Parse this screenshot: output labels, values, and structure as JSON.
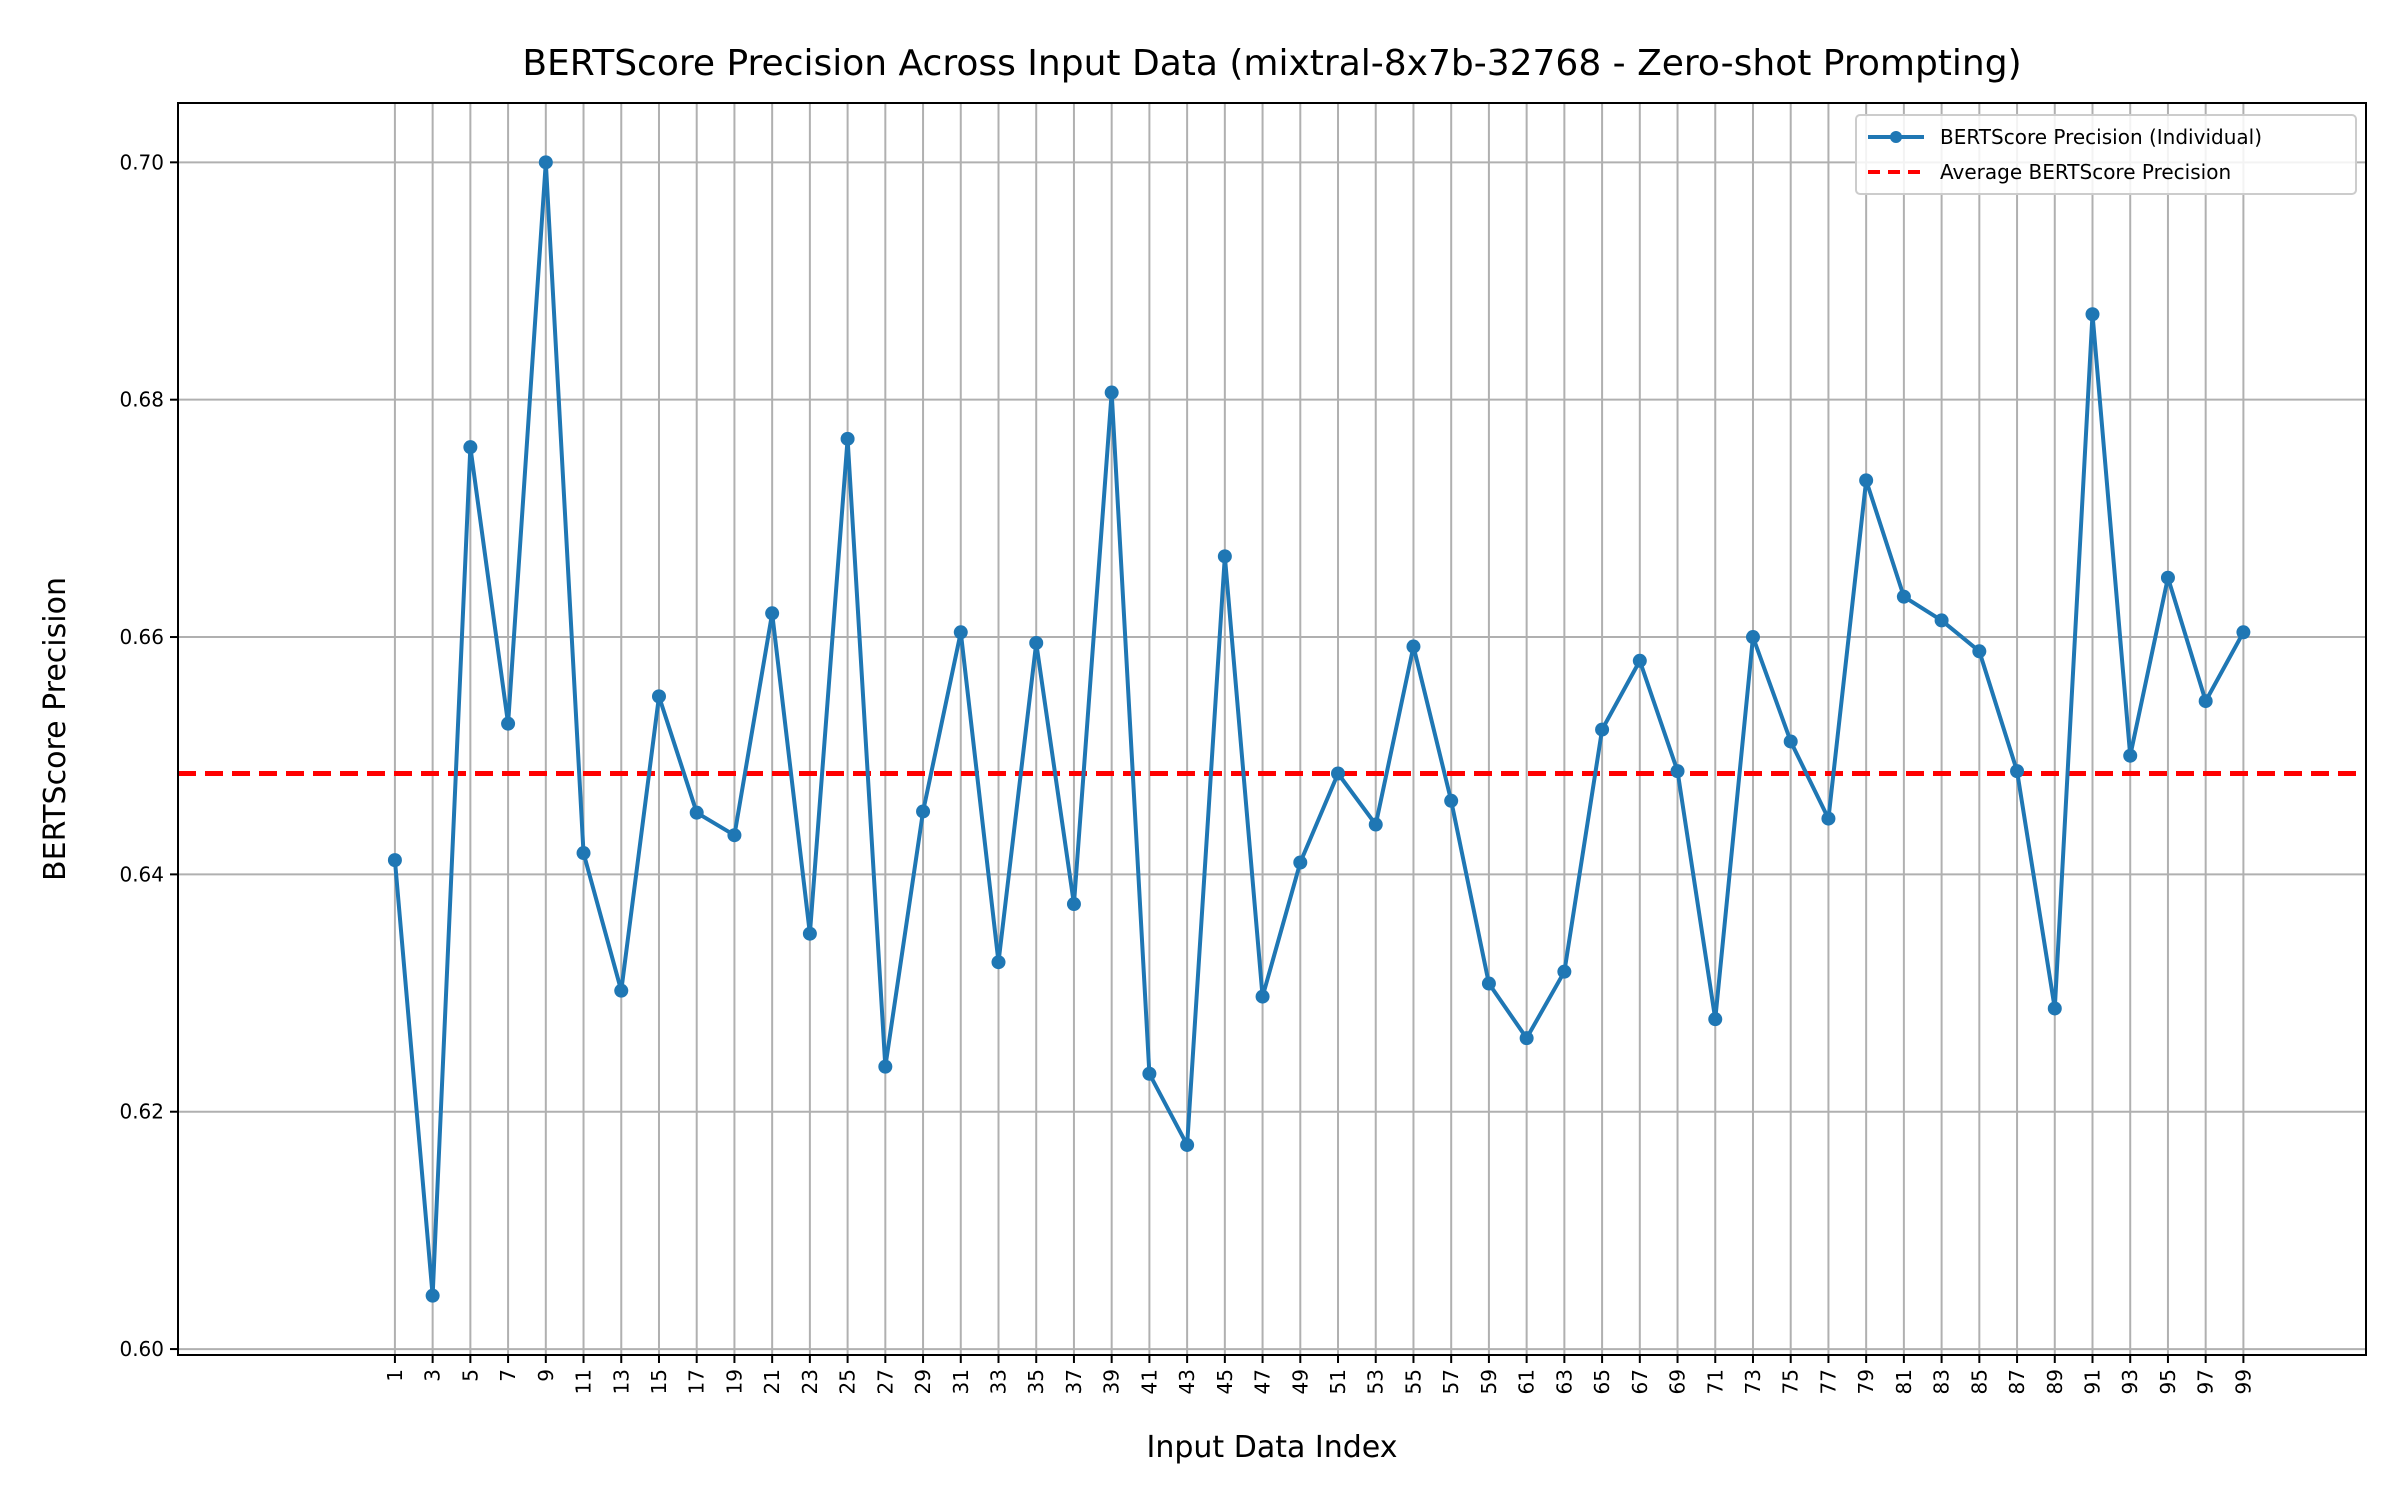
{
  "chart_data": {
    "type": "line",
    "title": "BERTScore Precision Across Input Data (mixtral-8x7b-32768 - Zero-shot Prompting)",
    "xlabel": "Input Data Index",
    "ylabel": "BERTScore Precision",
    "x": [
      1,
      3,
      5,
      7,
      9,
      11,
      13,
      15,
      17,
      19,
      21,
      23,
      25,
      27,
      29,
      31,
      33,
      35,
      37,
      39,
      41,
      43,
      45,
      47,
      49,
      51,
      53,
      55,
      57,
      59,
      61,
      63,
      65,
      67,
      69,
      71,
      73,
      75,
      77,
      79,
      81,
      83,
      85,
      87,
      89,
      91,
      93,
      95,
      97,
      99
    ],
    "x_tick_labels": [
      "1",
      "3",
      "5",
      "7",
      "9",
      "11",
      "13",
      "15",
      "17",
      "19",
      "21",
      "23",
      "25",
      "27",
      "29",
      "31",
      "33",
      "35",
      "37",
      "39",
      "41",
      "43",
      "45",
      "47",
      "49",
      "51",
      "53",
      "55",
      "57",
      "59",
      "61",
      "63",
      "65",
      "67",
      "69",
      "71",
      "73",
      "75",
      "77",
      "79",
      "81",
      "83",
      "85",
      "87",
      "89",
      "91",
      "93",
      "95",
      "97",
      "99"
    ],
    "y_ticks": [
      0.6,
      0.62,
      0.64,
      0.66,
      0.68,
      0.7
    ],
    "y_tick_labels": [
      "0.60",
      "0.62",
      "0.64",
      "0.66",
      "0.68",
      "0.70"
    ],
    "xlim": [
      -10.5,
      105.5
    ],
    "ylim": [
      0.5995,
      0.705
    ],
    "grid": true,
    "legend_position": "top-right",
    "series": [
      {
        "name": "BERTScore Precision (Individual)",
        "color": "#1f77b4",
        "style": "solid",
        "marker": "circle",
        "values": [
          0.6412,
          0.6045,
          0.676,
          0.6527,
          0.7,
          0.6418,
          0.6302,
          0.655,
          0.6452,
          0.6433,
          0.662,
          0.635,
          0.6767,
          0.6238,
          0.6453,
          0.6604,
          0.6326,
          0.6595,
          0.6375,
          0.6806,
          0.6232,
          0.6172,
          0.6668,
          0.6297,
          0.641,
          0.6485,
          0.6442,
          0.6592,
          0.6462,
          0.6308,
          0.6262,
          0.6318,
          0.6522,
          0.658,
          0.6487,
          0.6278,
          0.66,
          0.6512,
          0.6447,
          0.6732,
          0.6634,
          0.6614,
          0.6588,
          0.6487,
          0.6287,
          0.6872,
          0.65,
          0.665,
          0.6546,
          0.6604
        ]
      }
    ],
    "reference_line": {
      "name": "Average BERTScore Precision",
      "color": "#ff0000",
      "style": "dashed",
      "y": 0.6485
    }
  }
}
